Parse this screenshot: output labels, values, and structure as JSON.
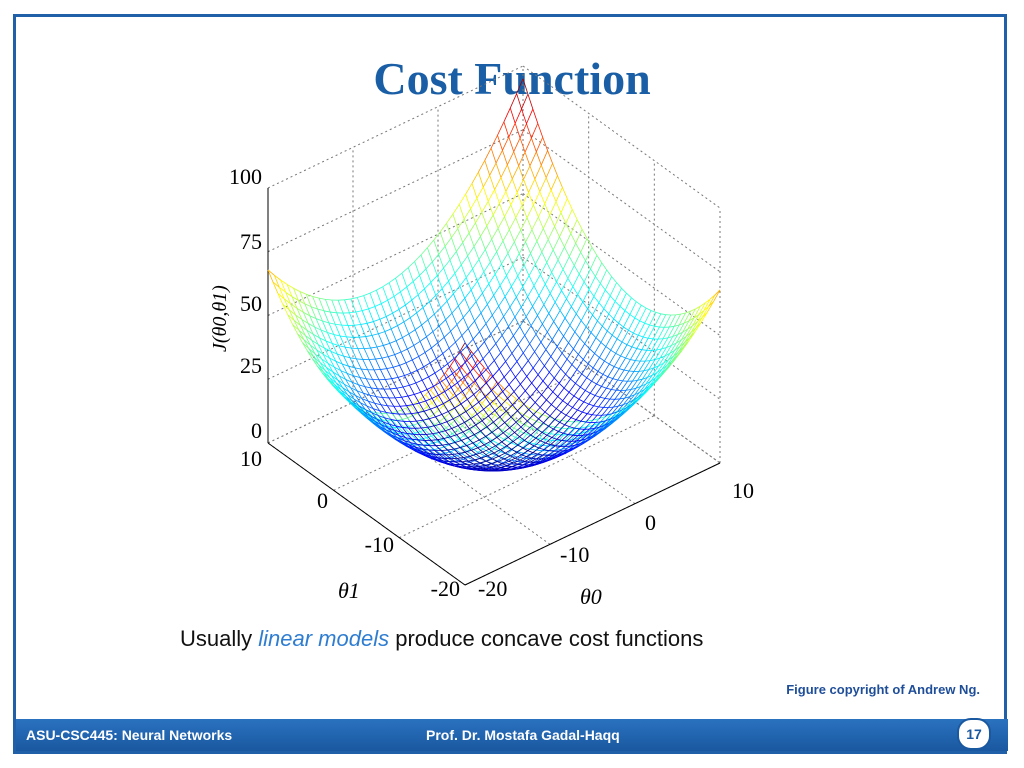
{
  "slide": {
    "title": "Cost Function",
    "caption_prefix": "Usually ",
    "caption_highlight": "linear models",
    "caption_suffix": " produce concave cost functions",
    "credit": "Figure copyright of Andrew Ng.",
    "footer_course": "ASU-CSC445: Neural Networks",
    "footer_author": "Prof. Dr. Mostafa Gadal-Haqq",
    "page_number": "17"
  },
  "chart_data": {
    "type": "surface",
    "title": "",
    "zlabel": "J(θ0,θ1)",
    "xlabel": "θ0",
    "ylabel": "θ1",
    "z_ticks": [
      "0",
      "25",
      "50",
      "75",
      "100"
    ],
    "theta0_ticks": [
      "-20",
      "-10",
      "0",
      "10"
    ],
    "theta1_ticks": [
      "-20",
      "-10",
      "0",
      "10"
    ],
    "xlim": [
      -20,
      10
    ],
    "ylim": [
      -20,
      10
    ],
    "zlim": [
      0,
      100
    ],
    "grid": true,
    "colormap": "jet",
    "colors": {
      "low": "#0000c8",
      "mid": "#33e0f0",
      "high": "#f0e040",
      "peak": "#d01818"
    }
  }
}
